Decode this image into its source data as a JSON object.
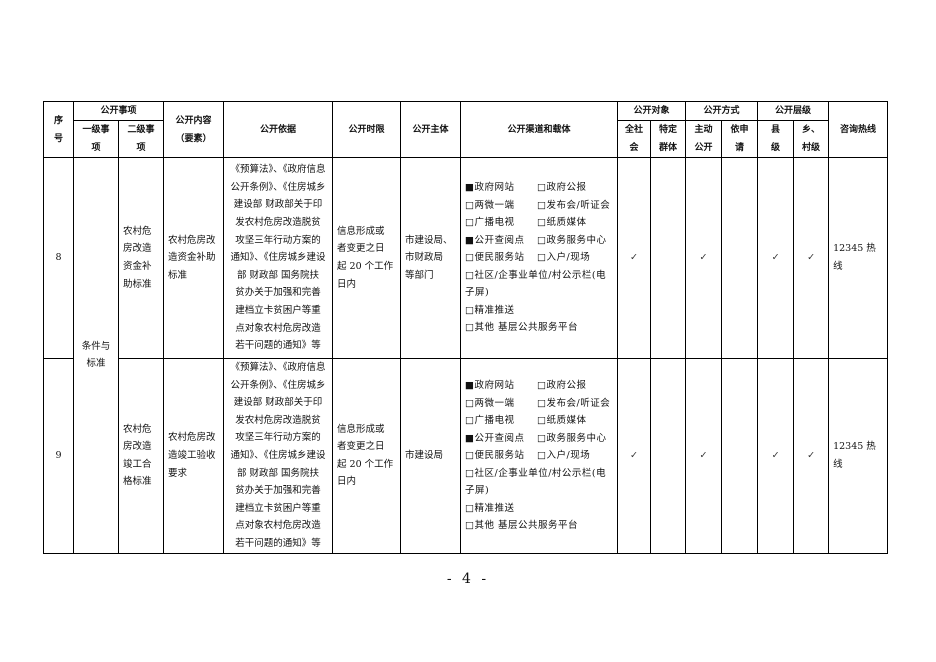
{
  "header": {
    "seq": "序\n号",
    "item_group": "公开事项",
    "level1": "一级事\n项",
    "level2": "二级事\n项",
    "content": "公开内容\n（要素）",
    "basis": "公开依据",
    "time_limit": "公开时限",
    "subject": "公开主体",
    "channels": "公开渠道和载体",
    "audience_group": "公开对象",
    "audience_all": "全社\n会",
    "audience_specific": "特定\n群体",
    "method_group": "公开方式",
    "method_active": "主动\n公开",
    "method_request": "依申\n请",
    "level_group": "公开层级",
    "level_county": "县\n级",
    "level_town": "乡、\n村级",
    "hotline": "咨询热线"
  },
  "shared_level1": "条件与\n标准",
  "rows": [
    {
      "seq": "8",
      "level2": "农村危\n房改造\n资金补\n助标准",
      "content": "农村危房改\n造资金补助\n标准",
      "basis": "《预算法》、《政府信息\n公开条例》、《住房城乡\n建设部 财政部关于印\n发农村危房改造脱贫\n攻坚三年行动方案的\n通知》、《住房城乡建设\n部 财政部 国务院扶\n贫办关于加强和完善\n建档立卡贫困户等重\n点对象农村危房改造\n若干问题的通知》等",
      "time_limit": "信息形成或\n者变更之日\n起 20 个工作\n日内",
      "subject": "市建设局、\n市财政局\n等部门",
      "channels": [
        "■政府网站",
        "□政府公报",
        "□两微一端",
        "□发布会/听证会",
        "□广播电视",
        "□纸质媒体",
        "■公开查阅点",
        "□政务服务中心",
        "□便民服务站",
        "□入户/现场",
        "□社区/企事业单位/村公示栏(电子屏)",
        "□精准推送",
        "□其他 基层公共服务平台"
      ],
      "audience_all": "✓",
      "audience_specific": "",
      "method_active": "✓",
      "method_request": "",
      "level_county": "✓",
      "level_town": "✓",
      "hotline": "12345 热线"
    },
    {
      "seq": "9",
      "level2": "农村危\n房改造\n竣工合\n格标准",
      "content": "农村危房改\n造竣工验收\n要求",
      "basis": "《预算法》、《政府信息\n公开条例》、《住房城乡\n建设部 财政部关于印\n发农村危房改造脱贫\n攻坚三年行动方案的\n通知》、《住房城乡建设\n部 财政部 国务院扶\n贫办关于加强和完善\n建档立卡贫困户等重\n点对象农村危房改造\n若干问题的通知》等",
      "time_limit": "信息形成或\n者变更之日\n起 20 个工作\n日内",
      "subject": "市建设局",
      "channels": [
        "■政府网站",
        "□政府公报",
        "□两微一端",
        "□发布会/听证会",
        "□广播电视",
        "□纸质媒体",
        "■公开查阅点",
        "□政务服务中心",
        "□便民服务站",
        "□入户/现场",
        "□社区/企事业单位/村公示栏(电子屏)",
        "□精准推送",
        "□其他 基层公共服务平台"
      ],
      "audience_all": "✓",
      "audience_specific": "",
      "method_active": "✓",
      "method_request": "",
      "level_county": "✓",
      "level_town": "✓",
      "hotline": "12345 热线"
    }
  ],
  "page_number": "- 4 -"
}
